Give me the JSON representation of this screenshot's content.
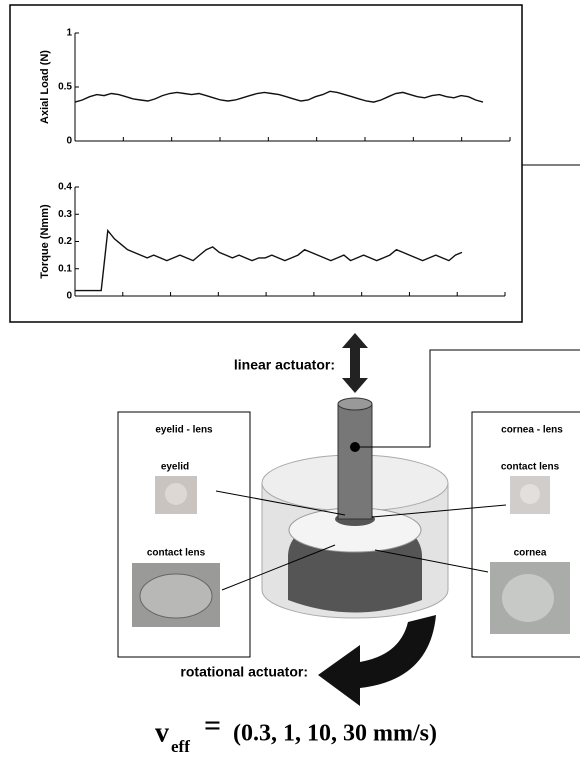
{
  "chart_data": [
    {
      "type": "line",
      "ylabel": "Axial Load (N)",
      "ylim": [
        0,
        1
      ],
      "yticks": [
        0,
        0.5,
        1
      ],
      "color": "#111111",
      "values": [
        0.36,
        0.38,
        0.41,
        0.43,
        0.42,
        0.44,
        0.43,
        0.41,
        0.39,
        0.38,
        0.37,
        0.39,
        0.42,
        0.44,
        0.45,
        0.44,
        0.43,
        0.44,
        0.42,
        0.4,
        0.38,
        0.37,
        0.38,
        0.4,
        0.42,
        0.44,
        0.45,
        0.44,
        0.43,
        0.41,
        0.39,
        0.37,
        0.38,
        0.41,
        0.43,
        0.46,
        0.45,
        0.43,
        0.41,
        0.39,
        0.37,
        0.36,
        0.38,
        0.41,
        0.44,
        0.45,
        0.43,
        0.41,
        0.4,
        0.42,
        0.43,
        0.41,
        0.4,
        0.42,
        0.41,
        0.38,
        0.36
      ]
    },
    {
      "type": "line",
      "ylabel": "Torque (Nmm)",
      "ylim": [
        0,
        0.4
      ],
      "yticks": [
        0,
        0.1,
        0.2,
        0.3,
        0.4
      ],
      "color": "#111111",
      "values": [
        0.02,
        0.02,
        0.02,
        0.02,
        0.02,
        0.24,
        0.21,
        0.19,
        0.17,
        0.16,
        0.15,
        0.14,
        0.15,
        0.14,
        0.13,
        0.14,
        0.15,
        0.14,
        0.13,
        0.15,
        0.17,
        0.18,
        0.16,
        0.15,
        0.14,
        0.15,
        0.14,
        0.13,
        0.14,
        0.14,
        0.15,
        0.14,
        0.13,
        0.14,
        0.15,
        0.17,
        0.16,
        0.15,
        0.14,
        0.13,
        0.14,
        0.15,
        0.13,
        0.14,
        0.15,
        0.14,
        0.13,
        0.14,
        0.15,
        0.17,
        0.16,
        0.15,
        0.14,
        0.13,
        0.14,
        0.15,
        0.14,
        0.13,
        0.15,
        0.16
      ]
    }
  ],
  "diagram": {
    "linear_actuator": "linear actuator:",
    "rotational_actuator": "rotational actuator:",
    "left_panel": {
      "title": "eyelid - lens",
      "labels": [
        "eyelid",
        "contact lens"
      ]
    },
    "right_panel": {
      "title": "cornea - lens",
      "labels": [
        "contact lens",
        "cornea"
      ]
    },
    "formula": {
      "symbol": "v",
      "subscript": "eff",
      "equals": "=",
      "text": "(0.3, 1, 10, 30 mm/s)"
    }
  }
}
